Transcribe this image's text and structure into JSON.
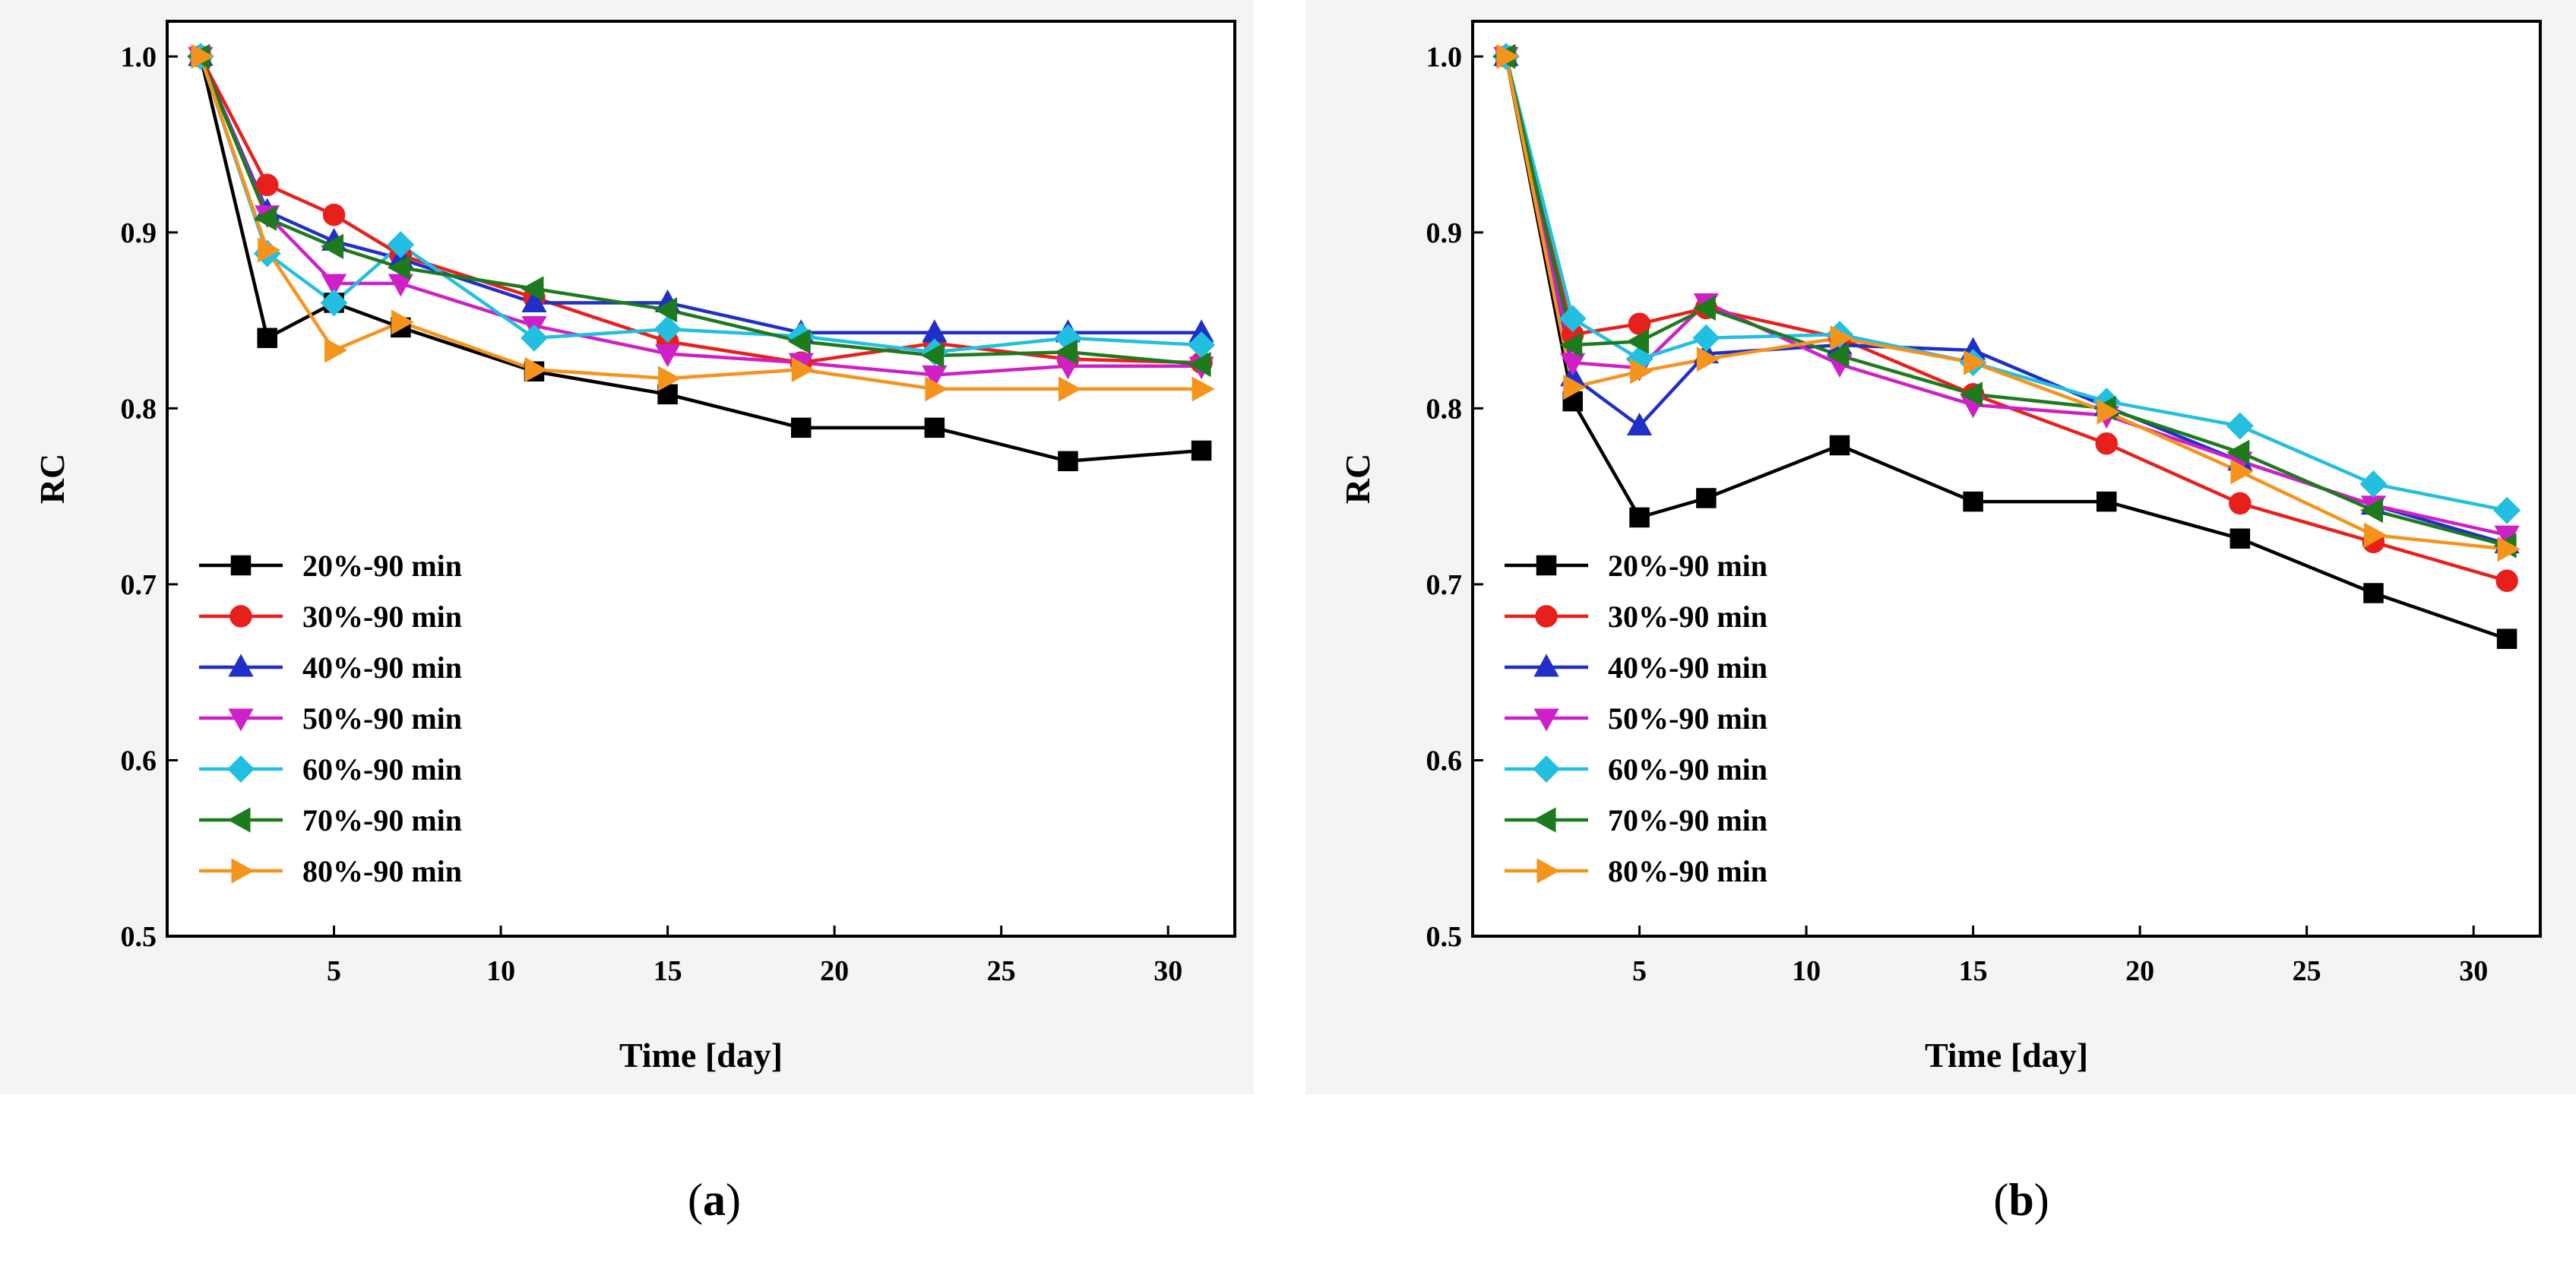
{
  "chart_data": [
    {
      "type": "line",
      "panel": "a",
      "xlabel": "Time [day]",
      "ylabel": "RC",
      "xlim": [
        0,
        32
      ],
      "ylim": [
        0.5,
        1.02
      ],
      "xticks": [
        5,
        10,
        15,
        20,
        25,
        30
      ],
      "yticks": [
        0.5,
        0.6,
        0.7,
        0.8,
        0.9,
        1.0
      ],
      "ytick_labels": [
        "0.5",
        "0.6",
        "0.7",
        "0.8",
        "0.9",
        "1.0"
      ],
      "legend_position": "bottom-left",
      "x": [
        1,
        3,
        5,
        7,
        11,
        15,
        19,
        23,
        27,
        31
      ],
      "series": [
        {
          "name": "20%-90 min",
          "color": "#000000",
          "marker": "square",
          "values": [
            1.0,
            0.84,
            0.86,
            0.846,
            0.821,
            0.808,
            0.789,
            0.789,
            0.77,
            0.776
          ]
        },
        {
          "name": "30%-90 min",
          "color": "#e8201c",
          "marker": "circle",
          "values": [
            1.0,
            0.927,
            0.91,
            0.887,
            0.863,
            0.838,
            0.826,
            0.837,
            0.828,
            0.826
          ]
        },
        {
          "name": "40%-90 min",
          "color": "#1f2fc7",
          "marker": "triangle-up",
          "values": [
            1.0,
            0.912,
            0.895,
            0.885,
            0.86,
            0.86,
            0.843,
            0.843,
            0.843,
            0.843
          ]
        },
        {
          "name": "50%-90 min",
          "color": "#cf20c8",
          "marker": "triangle-down",
          "values": [
            1.0,
            0.91,
            0.871,
            0.871,
            0.847,
            0.831,
            0.826,
            0.819,
            0.824,
            0.824
          ]
        },
        {
          "name": "60%-90 min",
          "color": "#22bfe0",
          "marker": "diamond",
          "values": [
            1.0,
            0.888,
            0.86,
            0.893,
            0.84,
            0.845,
            0.841,
            0.832,
            0.84,
            0.836
          ]
        },
        {
          "name": "70%-90 min",
          "color": "#1d7a1d",
          "marker": "triangle-left",
          "values": [
            1.0,
            0.908,
            0.892,
            0.88,
            0.868,
            0.856,
            0.838,
            0.83,
            0.832,
            0.825
          ]
        },
        {
          "name": "80%-90 min",
          "color": "#f5941d",
          "marker": "triangle-right",
          "values": [
            1.0,
            0.89,
            0.833,
            0.849,
            0.822,
            0.817,
            0.822,
            0.811,
            0.811,
            0.811
          ]
        }
      ]
    },
    {
      "type": "line",
      "panel": "b",
      "xlabel": "Time [day]",
      "ylabel": "RC",
      "xlim": [
        0,
        32
      ],
      "ylim": [
        0.5,
        1.02
      ],
      "xticks": [
        5,
        10,
        15,
        20,
        25,
        30
      ],
      "yticks": [
        0.5,
        0.6,
        0.7,
        0.8,
        0.9,
        1.0
      ],
      "ytick_labels": [
        "0.5",
        "0.6",
        "0.7",
        "0.8",
        "0.9",
        "1.0"
      ],
      "legend_position": "bottom-left",
      "x": [
        1,
        3,
        5,
        7,
        11,
        15,
        19,
        23,
        27,
        31
      ],
      "series": [
        {
          "name": "20%-90 min",
          "color": "#000000",
          "marker": "square",
          "values": [
            1.0,
            0.804,
            0.738,
            0.749,
            0.779,
            0.747,
            0.747,
            0.726,
            0.695,
            0.669
          ]
        },
        {
          "name": "30%-90 min",
          "color": "#e8201c",
          "marker": "circle",
          "values": [
            1.0,
            0.842,
            0.848,
            0.857,
            0.84,
            0.808,
            0.78,
            0.746,
            0.724,
            0.702
          ]
        },
        {
          "name": "40%-90 min",
          "color": "#1f2fc7",
          "marker": "triangle-up",
          "values": [
            1.0,
            0.818,
            0.79,
            0.831,
            0.836,
            0.833,
            0.801,
            0.77,
            0.745,
            0.723
          ]
        },
        {
          "name": "50%-90 min",
          "color": "#cf20c8",
          "marker": "triangle-down",
          "values": [
            1.0,
            0.826,
            0.823,
            0.86,
            0.825,
            0.802,
            0.796,
            0.77,
            0.745,
            0.728
          ]
        },
        {
          "name": "60%-90 min",
          "color": "#22bfe0",
          "marker": "diamond",
          "values": [
            1.0,
            0.851,
            0.828,
            0.84,
            0.842,
            0.826,
            0.804,
            0.79,
            0.757,
            0.742
          ]
        },
        {
          "name": "70%-90 min",
          "color": "#1d7a1d",
          "marker": "triangle-left",
          "values": [
            1.0,
            0.836,
            0.838,
            0.857,
            0.83,
            0.808,
            0.8,
            0.775,
            0.742,
            0.722
          ]
        },
        {
          "name": "80%-90 min",
          "color": "#f5941d",
          "marker": "triangle-right",
          "values": [
            1.0,
            0.812,
            0.821,
            0.828,
            0.84,
            0.826,
            0.798,
            0.764,
            0.728,
            0.72
          ]
        }
      ]
    }
  ],
  "captions": {
    "a": {
      "open": "(",
      "letter": "a",
      "close": ")"
    },
    "b": {
      "open": "(",
      "letter": "b",
      "close": ")"
    }
  }
}
